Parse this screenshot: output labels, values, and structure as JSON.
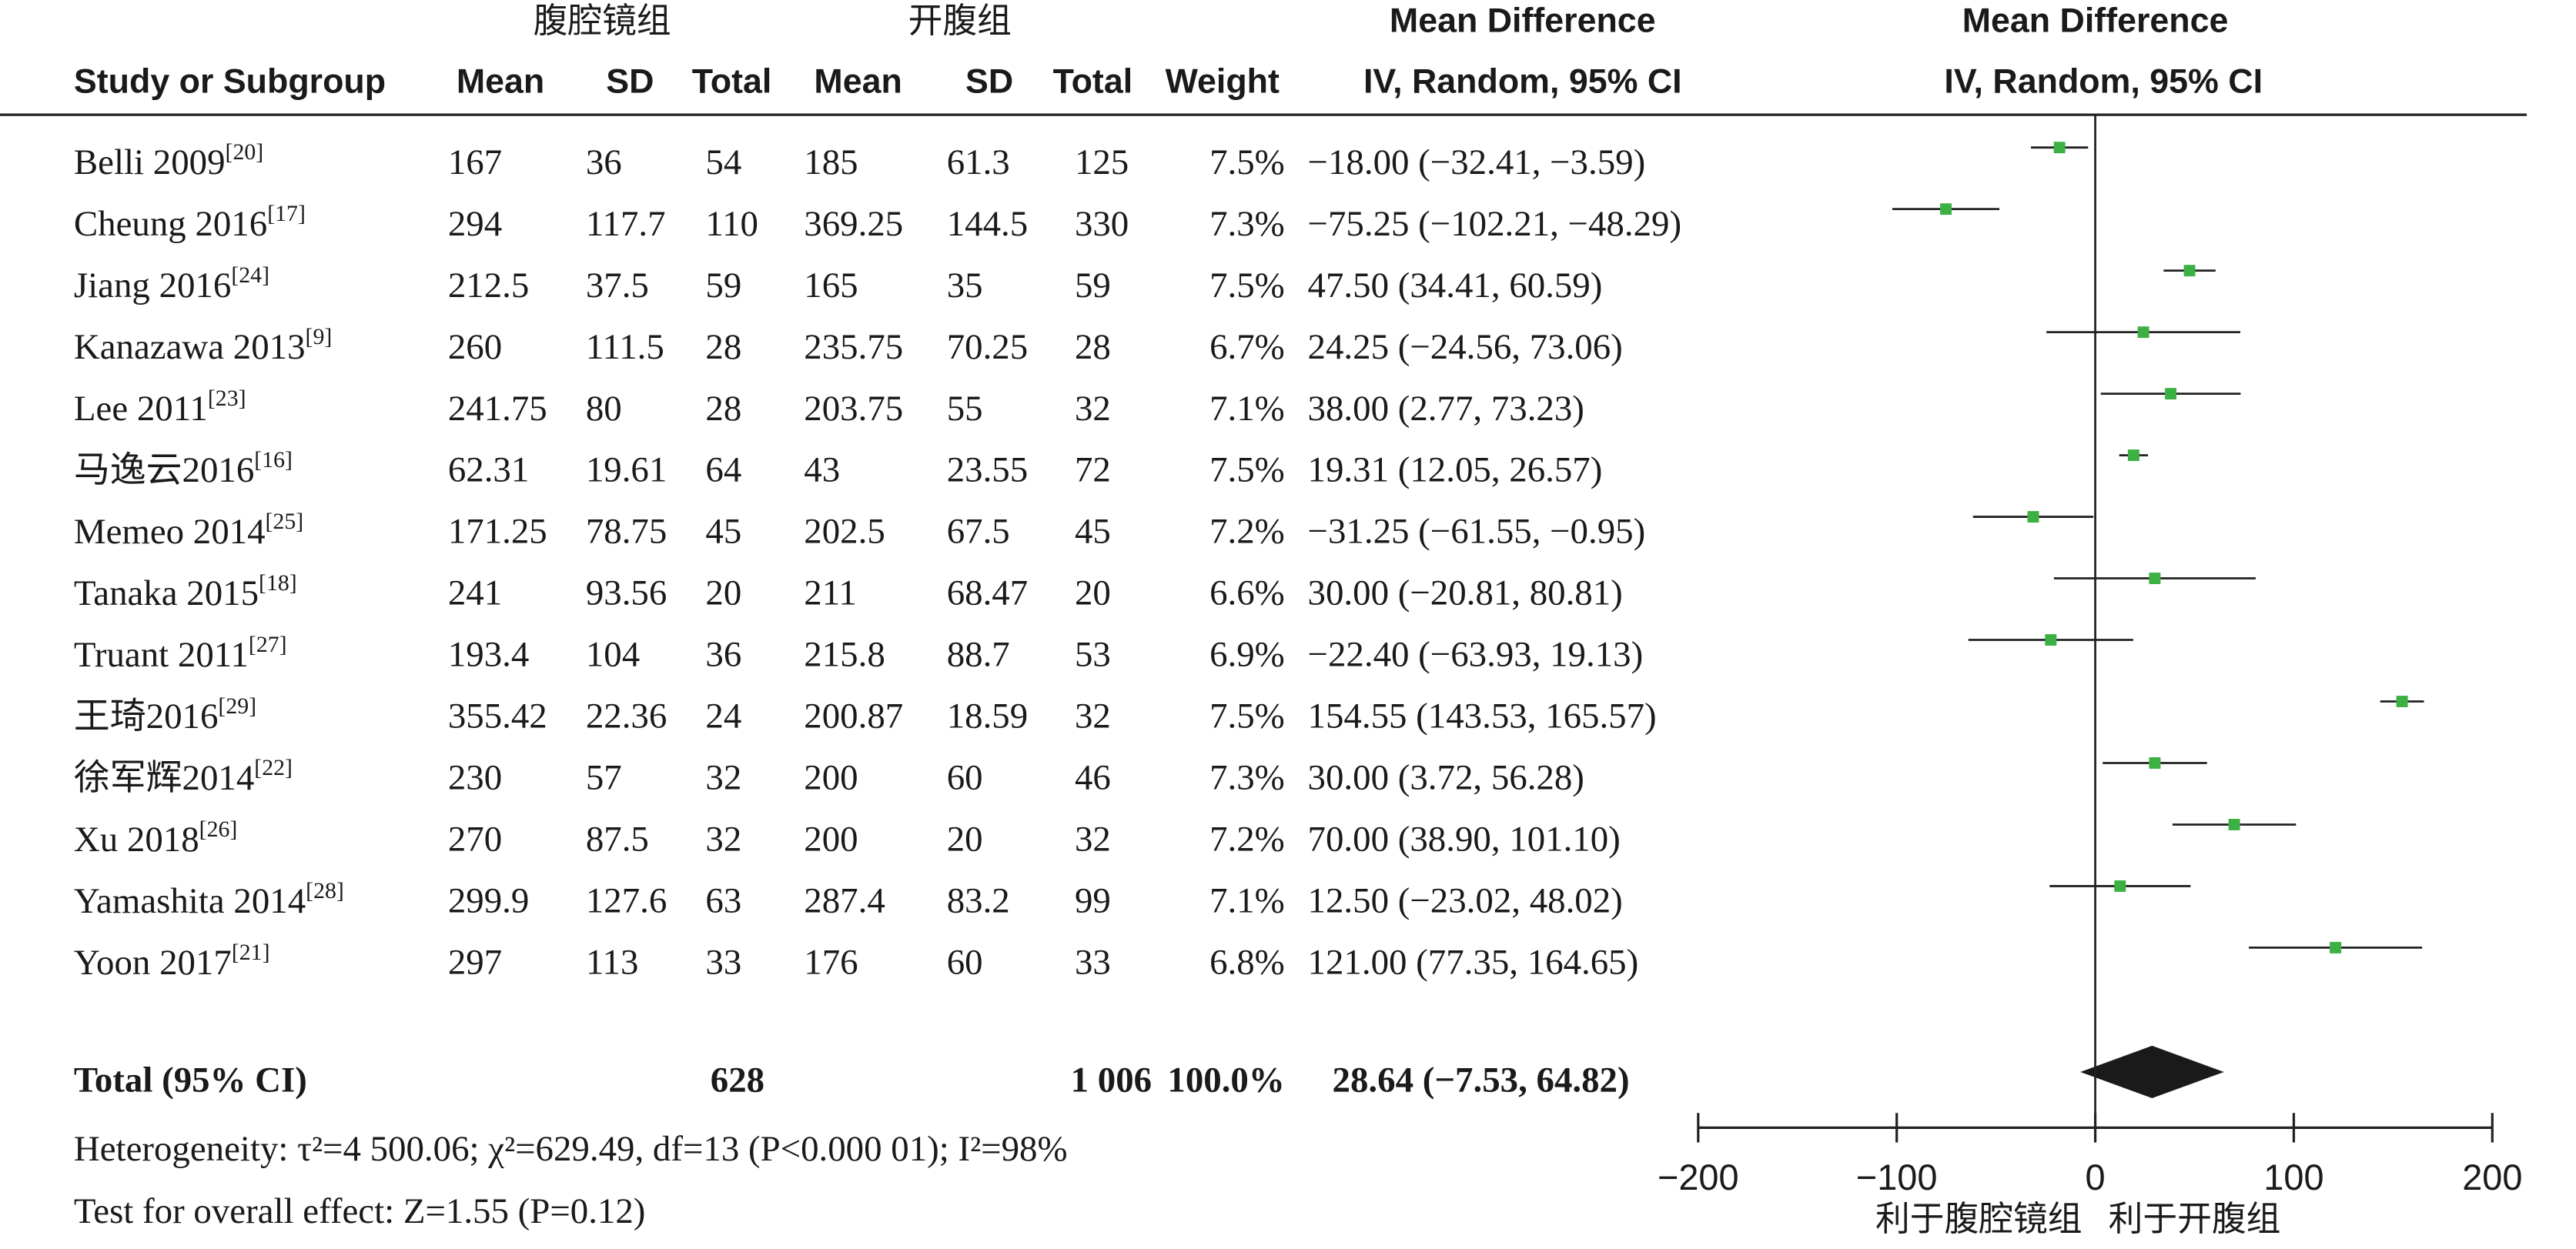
{
  "chart_data": {
    "type": "forest",
    "group_headers": [
      "腹腔镜组",
      "开腹组"
    ],
    "effect_header": "Mean Difference",
    "column_headers": [
      "Study or Subgroup",
      "Mean",
      "SD",
      "Total",
      "Mean",
      "SD",
      "Total",
      "Weight",
      "IV, Random, 95% CI",
      "IV, Random, 95% CI"
    ],
    "studies": [
      {
        "name": "Belli 2009",
        "ref": "[20]",
        "cells": [
          "167",
          "36",
          "54",
          "185",
          "61.3",
          "125",
          "7.5%"
        ],
        "ci_label": "−18.00 (−32.41, −3.59)"
      },
      {
        "name": "Cheung 2016",
        "ref": "[17]",
        "cells": [
          "294",
          "117.7",
          "110",
          "369.25",
          "144.5",
          "330",
          "7.3%"
        ],
        "ci_label": "−75.25 (−102.21, −48.29)"
      },
      {
        "name": "Jiang 2016",
        "ref": "[24]",
        "cells": [
          "212.5",
          "37.5",
          "59",
          "165",
          "35",
          "59",
          "7.5%"
        ],
        "ci_label": "47.50 (34.41, 60.59)"
      },
      {
        "name": "Kanazawa 2013",
        "ref": "[9]",
        "cells": [
          "260",
          "111.5",
          "28",
          "235.75",
          "70.25",
          "28",
          "6.7%"
        ],
        "ci_label": "24.25 (−24.56, 73.06)"
      },
      {
        "name": "Lee 2011",
        "ref": "[23]",
        "cells": [
          "241.75",
          "80",
          "28",
          "203.75",
          "55",
          "32",
          "7.1%"
        ],
        "ci_label": "38.00 (2.77, 73.23)"
      },
      {
        "name": "马逸云2016",
        "ref": "[16]",
        "cells": [
          "62.31",
          "19.61",
          "64",
          "43",
          "23.55",
          "72",
          "7.5%"
        ],
        "ci_label": "19.31 (12.05, 26.57)"
      },
      {
        "name": "Memeo 2014",
        "ref": "[25]",
        "cells": [
          "171.25",
          "78.75",
          "45",
          "202.5",
          "67.5",
          "45",
          "7.2%"
        ],
        "ci_label": "−31.25 (−61.55, −0.95)"
      },
      {
        "name": "Tanaka 2015",
        "ref": "[18]",
        "cells": [
          "241",
          "93.56",
          "20",
          "211",
          "68.47",
          "20",
          "6.6%"
        ],
        "ci_label": "30.00 (−20.81, 80.81)"
      },
      {
        "name": "Truant 2011",
        "ref": "[27]",
        "cells": [
          "193.4",
          "104",
          "36",
          "215.8",
          "88.7",
          "53",
          "6.9%"
        ],
        "ci_label": "−22.40 (−63.93, 19.13)"
      },
      {
        "name": "王琦2016",
        "ref": "[29]",
        "cells": [
          "355.42",
          "22.36",
          "24",
          "200.87",
          "18.59",
          "32",
          "7.5%"
        ],
        "ci_label": "154.55 (143.53, 165.57)"
      },
      {
        "name": "徐军辉2014",
        "ref": "[22]",
        "cells": [
          "230",
          "57",
          "32",
          "200",
          "60",
          "46",
          "7.3%"
        ],
        "ci_label": "30.00 (3.72, 56.28)"
      },
      {
        "name": "Xu 2018",
        "ref": "[26]",
        "cells": [
          "270",
          "87.5",
          "32",
          "200",
          "20",
          "32",
          "7.2%"
        ],
        "ci_label": "70.00 (38.90, 101.10)"
      },
      {
        "name": "Yamashita 2014",
        "ref": "[28]",
        "cells": [
          "299.9",
          "127.6",
          "63",
          "287.4",
          "83.2",
          "99",
          "7.1%"
        ],
        "ci_label": "12.50 (−23.02, 48.02)"
      },
      {
        "name": "Yoon 2017",
        "ref": "[21]",
        "cells": [
          "297",
          "113",
          "33",
          "176",
          "60",
          "33",
          "6.8%"
        ],
        "ci_label": "121.00 (77.35, 164.65)"
      }
    ],
    "values": [
      -18.0,
      -75.25,
      47.5,
      24.25,
      38.0,
      19.31,
      -31.25,
      30.0,
      -22.4,
      154.55,
      30.0,
      70.0,
      12.5,
      121.0
    ],
    "ci_low": [
      -32.41,
      -102.21,
      34.41,
      -24.56,
      2.77,
      12.05,
      -61.55,
      -20.81,
      -63.93,
      143.53,
      3.72,
      38.9,
      -23.02,
      77.35
    ],
    "ci_high": [
      -3.59,
      -48.29,
      60.59,
      73.06,
      73.23,
      26.57,
      -0.95,
      80.81,
      19.13,
      165.57,
      56.28,
      101.1,
      48.02,
      164.65
    ],
    "color": "#3cb043",
    "total": {
      "label": "Total (95% CI)",
      "n1": "628",
      "n2": "1 006",
      "weight": "100.0%",
      "ci_label": "28.64 (−7.53, 64.82)",
      "value": 28.64,
      "low": -7.53,
      "high": 64.82
    },
    "heterogeneity": "Heterogeneity: τ²=4 500.06; χ²=629.49, df=13 (P<0.000 01); I²=98%",
    "overall_effect": "Test for overall effect: Z=1.55 (P=0.12)",
    "xlim": [
      -200,
      200
    ],
    "xticks": [
      {
        "value": -200,
        "label": "−200"
      },
      {
        "value": -100,
        "label": "−100"
      },
      0,
      100,
      200
    ],
    "favours": [
      "利于腹腔镜组",
      "利于开腹组"
    ]
  }
}
